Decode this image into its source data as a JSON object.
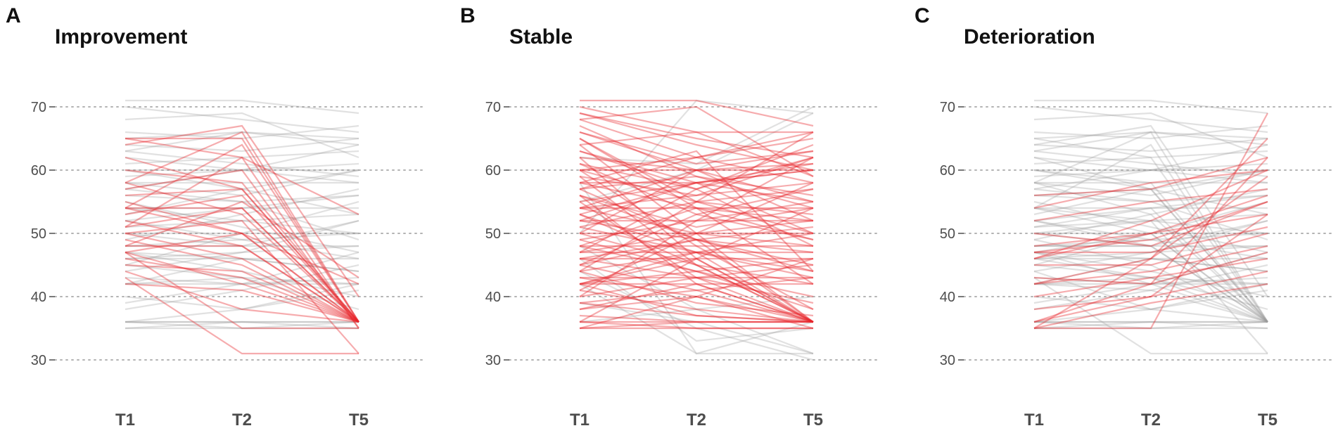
{
  "chart_data": [
    {
      "type": "line",
      "panel": "A",
      "title": "Improvement",
      "x": [
        "T1",
        "T2",
        "T5"
      ],
      "yticks": [
        30,
        40,
        50,
        60,
        70
      ],
      "ylim": [
        27,
        73
      ],
      "grid": "horizontal dotted",
      "background_series": [
        [
          35,
          35,
          35
        ],
        [
          35,
          36,
          36
        ],
        [
          36,
          36,
          35
        ],
        [
          36,
          35,
          36
        ],
        [
          36,
          36,
          36
        ],
        [
          42,
          42,
          42
        ],
        [
          42,
          43,
          42
        ],
        [
          43,
          42,
          43
        ],
        [
          42,
          46,
          44
        ],
        [
          46,
          46,
          46
        ],
        [
          46,
          47,
          48
        ],
        [
          47,
          46,
          44
        ],
        [
          48,
          48,
          48
        ],
        [
          48,
          49,
          50
        ],
        [
          50,
          48,
          52
        ],
        [
          50,
          50,
          50
        ],
        [
          51,
          52,
          53
        ],
        [
          52,
          54,
          56
        ],
        [
          54,
          54,
          54
        ],
        [
          54,
          52,
          50
        ],
        [
          56,
          55,
          56
        ],
        [
          58,
          58,
          58
        ],
        [
          58,
          56,
          60
        ],
        [
          59,
          60,
          61
        ],
        [
          60,
          60,
          60
        ],
        [
          61,
          62,
          63
        ],
        [
          62,
          60,
          58
        ],
        [
          64,
          63,
          65
        ],
        [
          65,
          66,
          64
        ],
        [
          66,
          65,
          67
        ],
        [
          71,
          71,
          69
        ],
        [
          70,
          68,
          66
        ],
        [
          68,
          69,
          62
        ],
        [
          45,
          50,
          55
        ],
        [
          40,
          38,
          42
        ],
        [
          38,
          41,
          45
        ],
        [
          53,
          57,
          60
        ],
        [
          57,
          55,
          49
        ],
        [
          63,
          61,
          59
        ],
        [
          44,
          47,
          52
        ],
        [
          49,
          53,
          57
        ],
        [
          55,
          51,
          47
        ],
        [
          36,
          38,
          41
        ],
        [
          47,
          44,
          40
        ],
        [
          60,
          57,
          53
        ],
        [
          52,
          49,
          46
        ],
        [
          45,
          43,
          38
        ],
        [
          39,
          42,
          47
        ],
        [
          57,
          60,
          64
        ],
        [
          63,
          66,
          65
        ]
      ],
      "highlight_series": [
        [
          65,
          65,
          36
        ],
        [
          65,
          62,
          35
        ],
        [
          64,
          67,
          40
        ],
        [
          62,
          57,
          36
        ],
        [
          60,
          58,
          36
        ],
        [
          58,
          66,
          36
        ],
        [
          57,
          60,
          35
        ],
        [
          56,
          57,
          36
        ],
        [
          55,
          50,
          42
        ],
        [
          54,
          64,
          36
        ],
        [
          54,
          50,
          36
        ],
        [
          53,
          56,
          36
        ],
        [
          52,
          48,
          36
        ],
        [
          51,
          54,
          36
        ],
        [
          50,
          52,
          31
        ],
        [
          50,
          46,
          36
        ],
        [
          48,
          55,
          43
        ],
        [
          48,
          48,
          36
        ],
        [
          47,
          50,
          36
        ],
        [
          47,
          42,
          36
        ],
        [
          46,
          43,
          36
        ],
        [
          45,
          44,
          36
        ],
        [
          43,
          31,
          31
        ],
        [
          42,
          41,
          36
        ],
        [
          47,
          35,
          35
        ],
        [
          54,
          54,
          36
        ],
        [
          51,
          62,
          53
        ],
        [
          49,
          45,
          36
        ],
        [
          44,
          38,
          36
        ],
        [
          58,
          53,
          36
        ]
      ]
    },
    {
      "type": "line",
      "panel": "B",
      "title": "Stable",
      "x": [
        "T1",
        "T2",
        "T5"
      ],
      "yticks": [
        30,
        40,
        50,
        60,
        70
      ],
      "ylim": [
        27,
        73
      ],
      "grid": "horizontal dotted",
      "background_series": [
        [
          42,
          31,
          31
        ],
        [
          36,
          38,
          31
        ],
        [
          50,
          71,
          69
        ],
        [
          58,
          31,
          36
        ],
        [
          62,
          61,
          70
        ],
        [
          44,
          35,
          30
        ],
        [
          39,
          36,
          31
        ],
        [
          55,
          60,
          69
        ],
        [
          48,
          38,
          40
        ],
        [
          46,
          33,
          35
        ]
      ],
      "highlight_series": [
        [
          71,
          71,
          67
        ],
        [
          70,
          66,
          66
        ],
        [
          69,
          64,
          60
        ],
        [
          68,
          62,
          65
        ],
        [
          67,
          59,
          54
        ],
        [
          66,
          61,
          63
        ],
        [
          65,
          55,
          50
        ],
        [
          64,
          66,
          59
        ],
        [
          63,
          57,
          62
        ],
        [
          62,
          60,
          61
        ],
        [
          61,
          53,
          49
        ],
        [
          60,
          60,
          60
        ],
        [
          60,
          62,
          58
        ],
        [
          59,
          56,
          62
        ],
        [
          58,
          58,
          60
        ],
        [
          58,
          54,
          52
        ],
        [
          57,
          59,
          56
        ],
        [
          56,
          49,
          47
        ],
        [
          55,
          58,
          61
        ],
        [
          54,
          54,
          54
        ],
        [
          54,
          56,
          58
        ],
        [
          54,
          50,
          48
        ],
        [
          53,
          47,
          44
        ],
        [
          52,
          52,
          52
        ],
        [
          52,
          58,
          60
        ],
        [
          51,
          55,
          53
        ],
        [
          50,
          50,
          50
        ],
        [
          50,
          45,
          42
        ],
        [
          49,
          52,
          55
        ],
        [
          48,
          48,
          48
        ],
        [
          48,
          44,
          40
        ],
        [
          47,
          50,
          52
        ],
        [
          47,
          47,
          47
        ],
        [
          46,
          46,
          46
        ],
        [
          46,
          49,
          51
        ],
        [
          46,
          43,
          39
        ],
        [
          45,
          41,
          36
        ],
        [
          44,
          47,
          50
        ],
        [
          43,
          43,
          43
        ],
        [
          42,
          42,
          42
        ],
        [
          42,
          46,
          36
        ],
        [
          42,
          44,
          46
        ],
        [
          42,
          47,
          36
        ],
        [
          41,
          38,
          36
        ],
        [
          40,
          43,
          45
        ],
        [
          39,
          41,
          43
        ],
        [
          38,
          40,
          36
        ],
        [
          37,
          36,
          36
        ],
        [
          36,
          36,
          36
        ],
        [
          36,
          35,
          35
        ],
        [
          35,
          35,
          35
        ],
        [
          35,
          36,
          36
        ],
        [
          36,
          46,
          54
        ],
        [
          35,
          40,
          46
        ],
        [
          38,
          42,
          36
        ],
        [
          55,
          43,
          36
        ],
        [
          60,
          48,
          38
        ],
        [
          65,
          54,
          42
        ],
        [
          57,
          49,
          36
        ],
        [
          53,
          45,
          36
        ],
        [
          44,
          55,
          66
        ],
        [
          50,
          60,
          63
        ],
        [
          47,
          57,
          64
        ],
        [
          41,
          50,
          58
        ],
        [
          40,
          52,
          62
        ],
        [
          64,
          50,
          36
        ],
        [
          62,
          46,
          36
        ],
        [
          59,
          45,
          36
        ],
        [
          56,
          42,
          36
        ],
        [
          58,
          63,
          44
        ],
        [
          61,
          57,
          48
        ],
        [
          45,
          53,
          57
        ],
        [
          49,
          44,
          38
        ],
        [
          43,
          40,
          35
        ],
        [
          51,
          47,
          43
        ],
        [
          54,
          60,
          52
        ],
        [
          66,
          60,
          55
        ],
        [
          63,
          58,
          50
        ],
        [
          68,
          70,
          59
        ],
        [
          45,
          49,
          44
        ],
        [
          57,
          62,
          66
        ],
        [
          52,
          49,
          45
        ],
        [
          48,
          54,
          49
        ],
        [
          60,
          55,
          57
        ],
        [
          44,
          39,
          37
        ],
        [
          53,
          58,
          55
        ],
        [
          56,
          51,
          54
        ],
        [
          69,
          65,
          62
        ],
        [
          39,
          37,
          36
        ],
        [
          42,
          37,
          36
        ]
      ]
    },
    {
      "type": "line",
      "panel": "C",
      "title": "Deterioration",
      "x": [
        "T1",
        "T2",
        "T5"
      ],
      "yticks": [
        30,
        40,
        50,
        60,
        70
      ],
      "ylim": [
        27,
        73
      ],
      "grid": "horizontal dotted",
      "background_series": [
        [
          35,
          35,
          35
        ],
        [
          35,
          36,
          36
        ],
        [
          36,
          36,
          35
        ],
        [
          36,
          35,
          36
        ],
        [
          36,
          36,
          36
        ],
        [
          42,
          42,
          42
        ],
        [
          42,
          43,
          42
        ],
        [
          43,
          42,
          43
        ],
        [
          42,
          46,
          44
        ],
        [
          46,
          46,
          46
        ],
        [
          46,
          47,
          48
        ],
        [
          47,
          46,
          44
        ],
        [
          48,
          48,
          48
        ],
        [
          48,
          49,
          50
        ],
        [
          50,
          48,
          52
        ],
        [
          50,
          50,
          50
        ],
        [
          51,
          52,
          53
        ],
        [
          52,
          54,
          56
        ],
        [
          54,
          54,
          54
        ],
        [
          54,
          52,
          50
        ],
        [
          56,
          55,
          56
        ],
        [
          58,
          58,
          58
        ],
        [
          58,
          56,
          60
        ],
        [
          59,
          60,
          61
        ],
        [
          60,
          60,
          60
        ],
        [
          61,
          62,
          63
        ],
        [
          62,
          60,
          58
        ],
        [
          64,
          63,
          65
        ],
        [
          65,
          66,
          64
        ],
        [
          66,
          65,
          67
        ],
        [
          71,
          71,
          69
        ],
        [
          70,
          68,
          66
        ],
        [
          68,
          69,
          62
        ],
        [
          45,
          50,
          55
        ],
        [
          40,
          38,
          42
        ],
        [
          38,
          41,
          45
        ],
        [
          53,
          57,
          60
        ],
        [
          57,
          55,
          49
        ],
        [
          63,
          61,
          59
        ],
        [
          44,
          47,
          52
        ],
        [
          49,
          53,
          57
        ],
        [
          55,
          51,
          47
        ],
        [
          36,
          38,
          41
        ],
        [
          47,
          44,
          40
        ],
        [
          60,
          57,
          53
        ],
        [
          52,
          49,
          46
        ],
        [
          45,
          43,
          38
        ],
        [
          39,
          42,
          47
        ],
        [
          57,
          60,
          64
        ],
        [
          63,
          66,
          65
        ],
        [
          65,
          62,
          36
        ],
        [
          62,
          57,
          36
        ],
        [
          58,
          66,
          36
        ],
        [
          54,
          64,
          36
        ],
        [
          52,
          48,
          36
        ],
        [
          50,
          52,
          31
        ],
        [
          48,
          48,
          36
        ],
        [
          47,
          50,
          36
        ],
        [
          46,
          43,
          36
        ],
        [
          43,
          31,
          31
        ],
        [
          64,
          67,
          40
        ],
        [
          60,
          58,
          36
        ],
        [
          56,
          57,
          36
        ],
        [
          54,
          50,
          36
        ],
        [
          51,
          54,
          36
        ],
        [
          47,
          42,
          36
        ],
        [
          42,
          41,
          36
        ],
        [
          49,
          45,
          36
        ],
        [
          44,
          38,
          36
        ],
        [
          58,
          53,
          36
        ]
      ],
      "highlight_series": [
        [
          35,
          35,
          69
        ],
        [
          35,
          46,
          65
        ],
        [
          36,
          42,
          62
        ],
        [
          42,
          46,
          59
        ],
        [
          46,
          52,
          60
        ],
        [
          48,
          50,
          56
        ],
        [
          36,
          40,
          53
        ],
        [
          50,
          48,
          55
        ],
        [
          54,
          58,
          60
        ],
        [
          43,
          42,
          47
        ],
        [
          47,
          49,
          55
        ],
        [
          45,
          45,
          50
        ],
        [
          42,
          44,
          48
        ],
        [
          52,
          55,
          57
        ],
        [
          56,
          57,
          62
        ],
        [
          40,
          43,
          46
        ],
        [
          38,
          40,
          44
        ],
        [
          35,
          39,
          42
        ],
        [
          46,
          50,
          53
        ],
        [
          47,
          47,
          51
        ]
      ]
    }
  ]
}
